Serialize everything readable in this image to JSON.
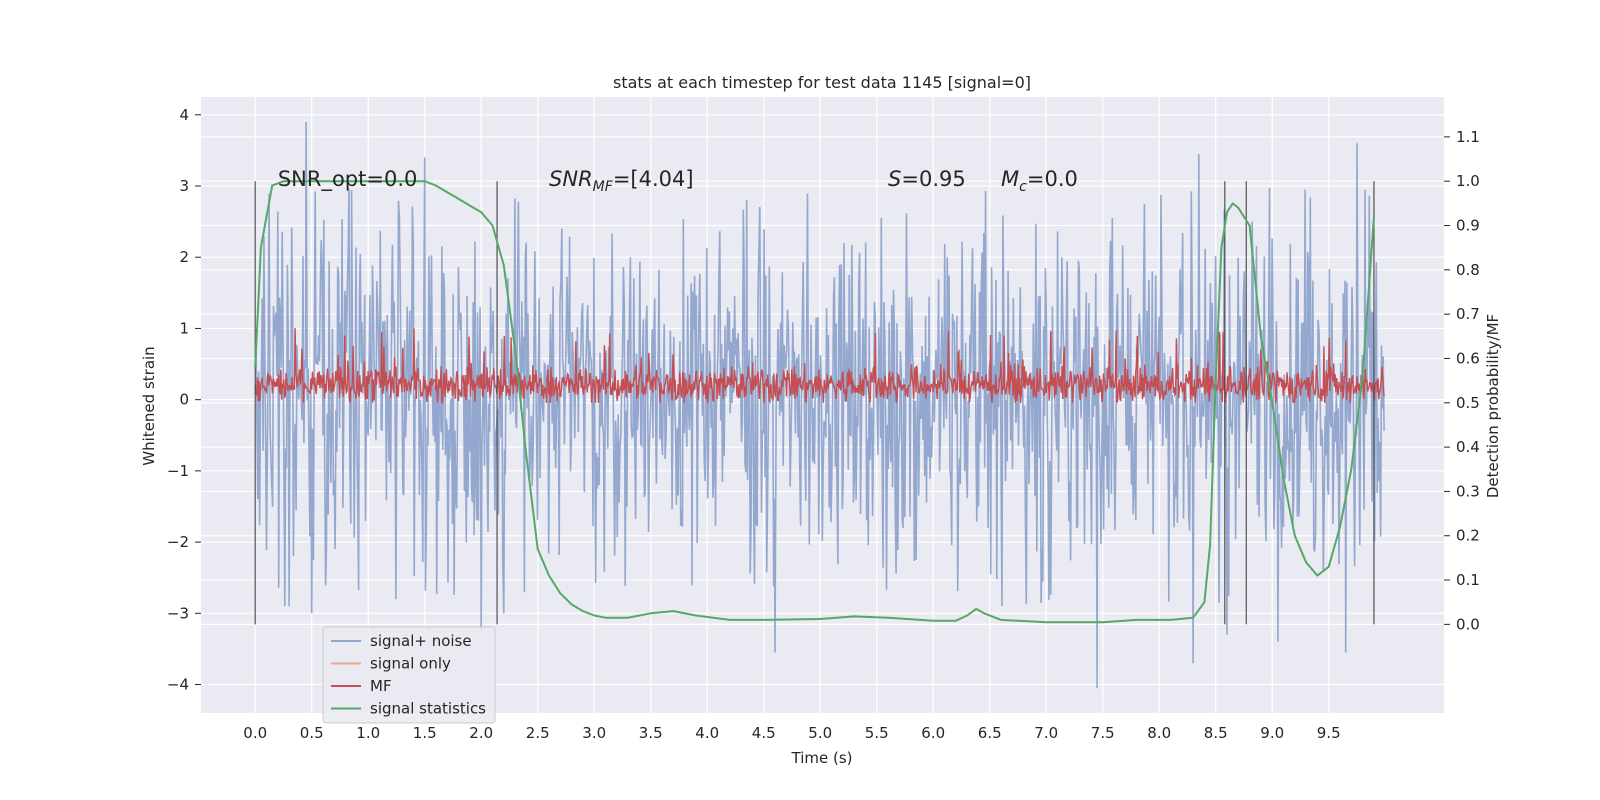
{
  "chart_data": {
    "type": "line",
    "title": "stats at each timestep for test data 1145 [signal=0]",
    "xlabel": "Time (s)",
    "ylabel": "Whitened strain",
    "y2label": "Detection probability/MF",
    "xlim": [
      -0.48,
      10.52
    ],
    "ylim": [
      -4.4,
      4.25
    ],
    "y2lim": [
      -0.2,
      1.19
    ],
    "xticks": [
      0.0,
      0.5,
      1.0,
      1.5,
      2.0,
      2.5,
      3.0,
      3.5,
      4.0,
      4.5,
      5.0,
      5.5,
      6.0,
      6.5,
      7.0,
      7.5,
      8.0,
      8.5,
      9.0,
      9.5
    ],
    "xtick_labels": [
      "0.0",
      "0.5",
      "1.0",
      "1.5",
      "2.0",
      "2.5",
      "3.0",
      "3.5",
      "4.0",
      "4.5",
      "5.0",
      "5.5",
      "6.0",
      "6.5",
      "7.0",
      "7.5",
      "8.0",
      "8.5",
      "9.0",
      "9.5"
    ],
    "yticks": [
      -4,
      -3,
      -2,
      -1,
      0,
      1,
      2,
      3,
      4
    ],
    "ytick_labels": [
      "−4",
      "−3",
      "−2",
      "−1",
      "0",
      "1",
      "2",
      "3",
      "4"
    ],
    "y2ticks": [
      0.0,
      0.1,
      0.2,
      0.3,
      0.4,
      0.5,
      0.6,
      0.7,
      0.8,
      0.9,
      1.0,
      1.1
    ],
    "y2tick_labels": [
      "0.0",
      "0.1",
      "0.2",
      "0.3",
      "0.4",
      "0.5",
      "0.6",
      "0.7",
      "0.8",
      "0.9",
      "1.0",
      "1.1"
    ],
    "grid": true,
    "legend": {
      "placement": "lower-left",
      "entries": [
        {
          "label": "signal+ noise",
          "color": "#8fa4cc"
        },
        {
          "label": "signal only",
          "color": "#e9a98a"
        },
        {
          "label": "MF",
          "color": "#c44e52"
        },
        {
          "label": "signal statistics",
          "color": "#55a868"
        }
      ]
    },
    "annotations": [
      {
        "text": "SNR_opt=0.0",
        "x": 0.2,
        "y": 3.0
      },
      {
        "text": "SNR_MF=[4.04]",
        "x": 2.6,
        "y": 3.0
      },
      {
        "text": "S=0.95",
        "x": 5.6,
        "y": 3.0
      },
      {
        "text": "M_c=0.0",
        "x": 6.6,
        "y": 3.0
      }
    ],
    "vertical_lines_x": [
      0.0,
      2.14,
      8.58,
      8.77,
      9.9
    ],
    "series": [
      {
        "name": "signal+ noise",
        "axis": "left",
        "color": "#8fa4cc",
        "kind": "noise",
        "x_range": [
          0.0,
          9.99
        ],
        "typical_range": [
          -1.6,
          1.8
        ],
        "peaks": [
          {
            "x": 0.45,
            "y": 3.9
          },
          {
            "x": 0.3,
            "y": -2.9
          },
          {
            "x": 0.5,
            "y": -3.0
          },
          {
            "x": 2.0,
            "y": -3.25
          },
          {
            "x": 2.2,
            "y": -3.0
          },
          {
            "x": 4.6,
            "y": -3.55
          },
          {
            "x": 7.45,
            "y": -4.05
          },
          {
            "x": 8.3,
            "y": -3.7
          },
          {
            "x": 8.6,
            "y": -3.3
          },
          {
            "x": 9.05,
            "y": -3.4
          },
          {
            "x": 9.65,
            "y": -3.55
          },
          {
            "x": 9.75,
            "y": 3.6
          },
          {
            "x": 8.35,
            "y": 3.45
          },
          {
            "x": 1.5,
            "y": 3.4
          }
        ]
      },
      {
        "name": "MF",
        "axis": "right",
        "color": "#c44e52",
        "kind": "noise",
        "x_range": [
          0.0,
          9.99
        ],
        "typical_range": [
          0.51,
          0.57
        ],
        "min": 0.5,
        "max": 0.67
      },
      {
        "name": "signal statistics",
        "axis": "right",
        "color": "#55a868",
        "kind": "line",
        "x": [
          0.0,
          0.05,
          0.1,
          0.15,
          0.25,
          0.5,
          1.0,
          1.5,
          1.6,
          1.8,
          1.9,
          2.0,
          2.1,
          2.2,
          2.3,
          2.4,
          2.5,
          2.6,
          2.7,
          2.8,
          2.9,
          3.0,
          3.1,
          3.3,
          3.5,
          3.7,
          3.9,
          4.2,
          4.5,
          5.0,
          5.3,
          5.6,
          6.0,
          6.2,
          6.3,
          6.38,
          6.45,
          6.6,
          7.0,
          7.5,
          7.8,
          8.1,
          8.3,
          8.4,
          8.45,
          8.5,
          8.55,
          8.6,
          8.65,
          8.7,
          8.8,
          8.9,
          9.0,
          9.1,
          9.2,
          9.3,
          9.4,
          9.5,
          9.6,
          9.7,
          9.8,
          9.85,
          9.9
        ],
        "y": [
          0.58,
          0.85,
          0.92,
          0.99,
          1.0,
          1.0,
          1.0,
          1.0,
          0.99,
          0.96,
          0.945,
          0.93,
          0.9,
          0.81,
          0.62,
          0.38,
          0.17,
          0.11,
          0.07,
          0.045,
          0.03,
          0.02,
          0.015,
          0.015,
          0.025,
          0.03,
          0.02,
          0.01,
          0.01,
          0.012,
          0.018,
          0.015,
          0.008,
          0.008,
          0.02,
          0.035,
          0.025,
          0.01,
          0.005,
          0.005,
          0.01,
          0.01,
          0.015,
          0.05,
          0.18,
          0.55,
          0.85,
          0.93,
          0.95,
          0.94,
          0.9,
          0.65,
          0.5,
          0.33,
          0.2,
          0.14,
          0.11,
          0.13,
          0.22,
          0.35,
          0.56,
          0.74,
          0.92
        ]
      }
    ]
  }
}
